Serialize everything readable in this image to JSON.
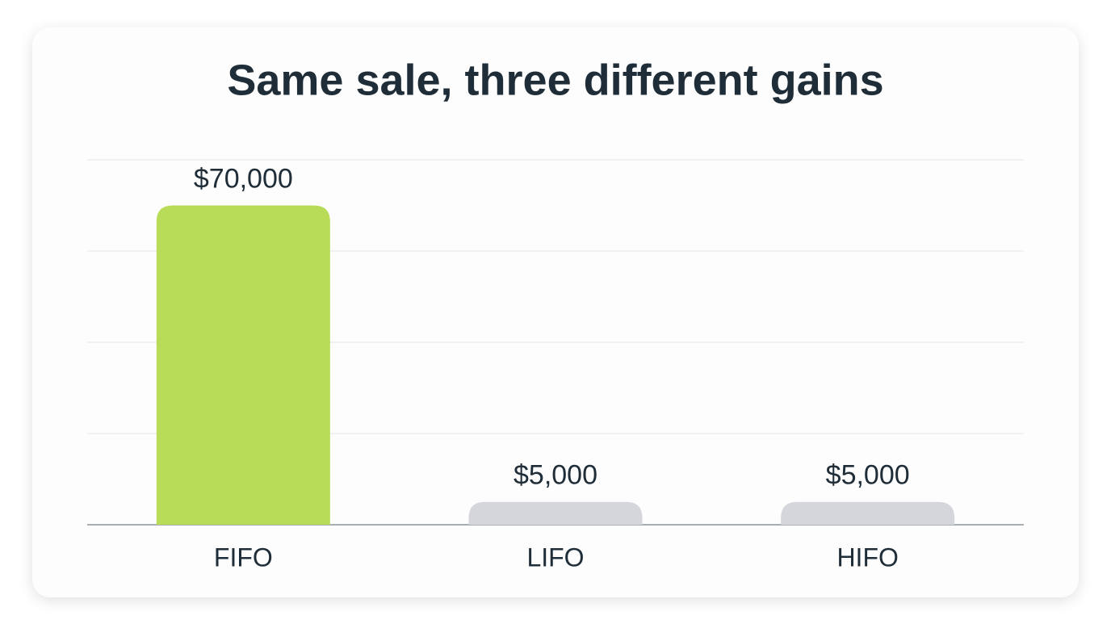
{
  "chart_data": {
    "type": "bar",
    "title": "Same sale, three different gains",
    "categories": [
      "FIFO",
      "LIFO",
      "HIFO"
    ],
    "values": [
      70000,
      5000,
      5000
    ],
    "value_labels": [
      "$70,000",
      "$5,000",
      "$5,000"
    ],
    "colors": [
      "#b8dc58",
      "#d4d6dc",
      "#d4d6dc"
    ],
    "ylim": [
      0,
      80000
    ],
    "yticks": [
      0,
      20000,
      40000,
      60000,
      80000
    ],
    "grid": true
  }
}
